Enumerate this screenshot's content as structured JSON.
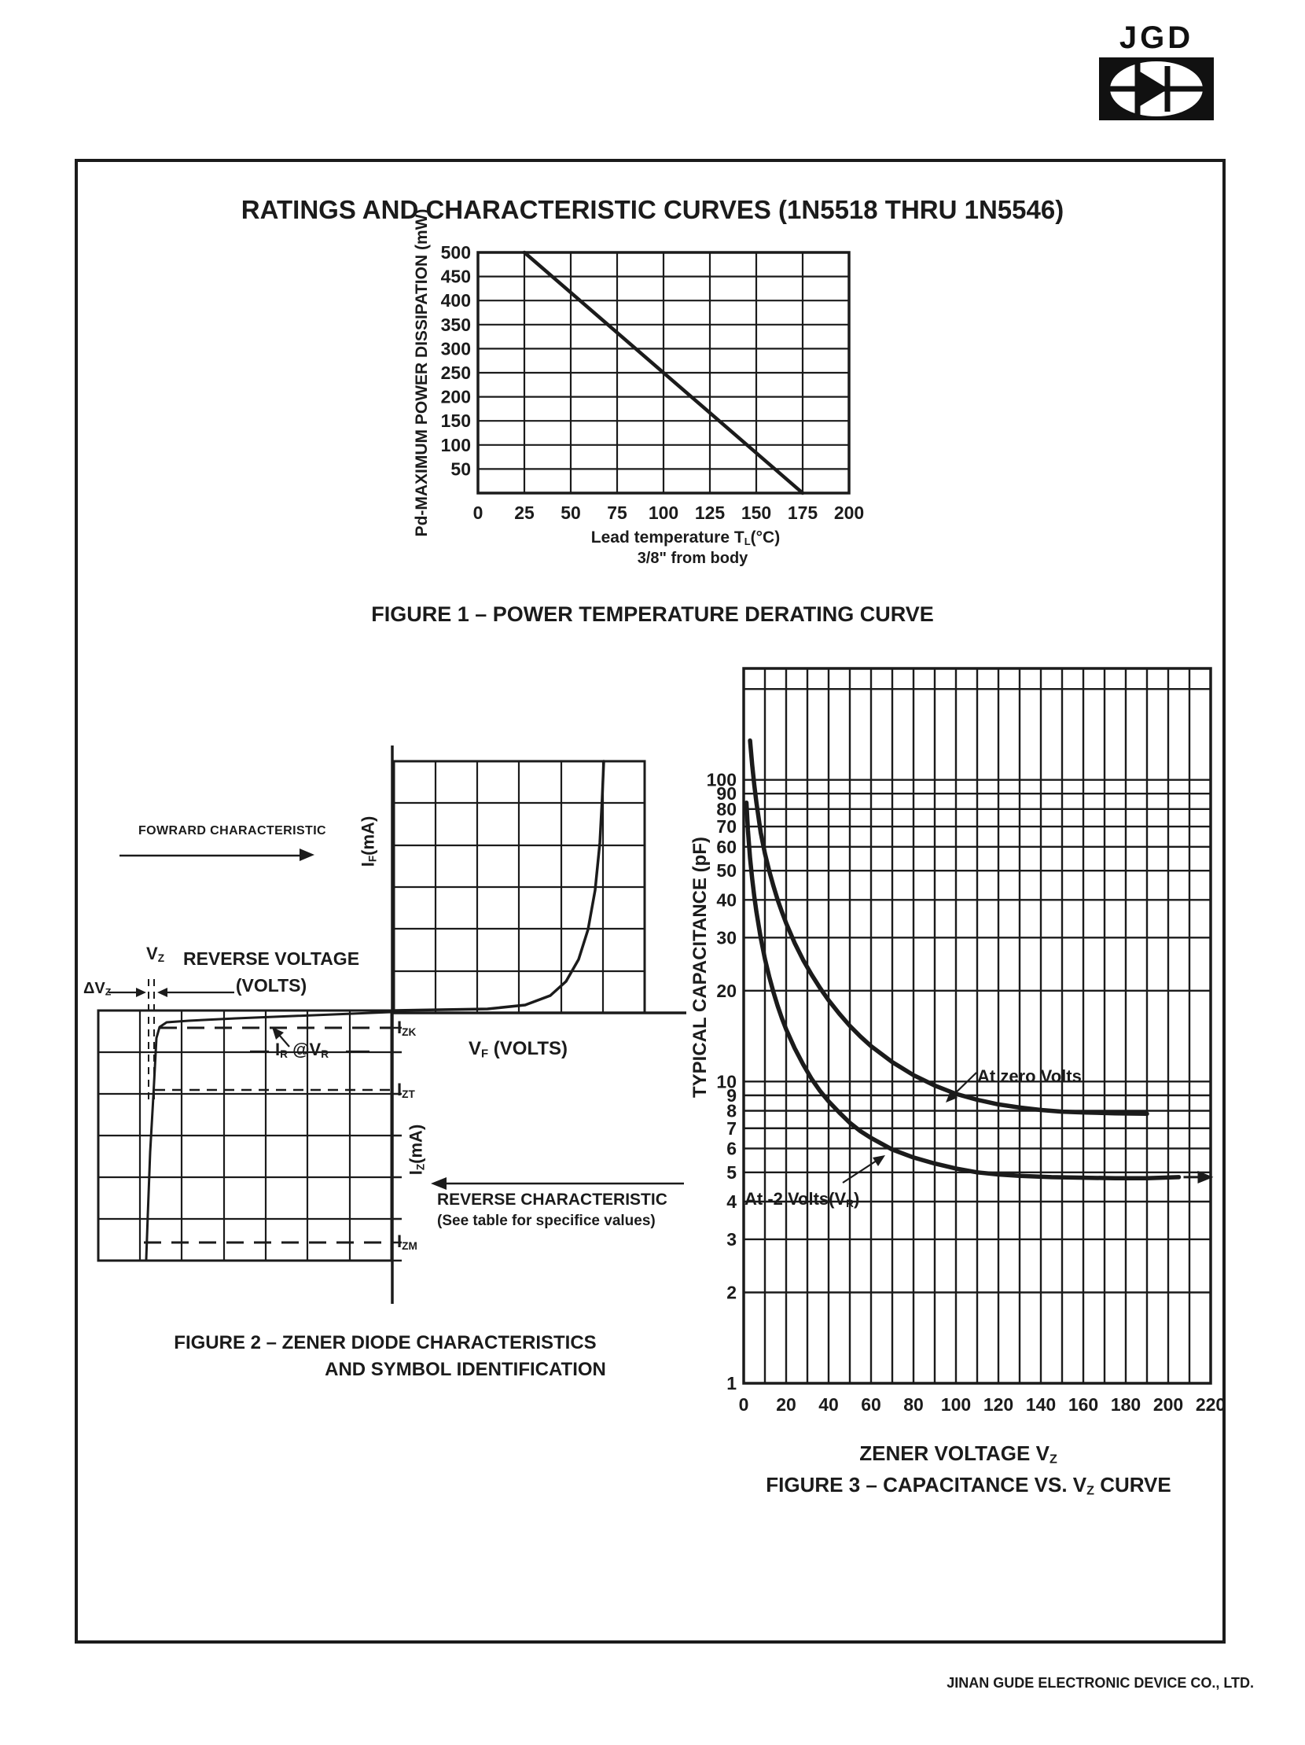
{
  "title": "RATINGS AND CHARACTERISTIC CURVES (1N5518 THRU 1N5546)",
  "logo": {
    "text": "JGD"
  },
  "footer": "JINAN GUDE ELECTRONIC DEVICE CO., LTD.",
  "fig1": {
    "caption": "FIGURE 1 – POWER TEMPERATURE DERATING CURVE",
    "y_axis_label": "Pd-MAXIMUM POWER DISSIPATION (mW)",
    "x_axis_label": {
      "pre": "Lead temperature T",
      "sub": "L",
      "post": "(°C)"
    },
    "x_axis_note": "3/8\" from body"
  },
  "fig2": {
    "caption_line1": "FIGURE 2 – ZENER DIODE CHARACTERISTICS",
    "caption_line2": "AND SYMBOL IDENTIFICATION",
    "forward_label": "FOWRARD CHARACTERISTIC",
    "reverse_label": "REVERSE CHARACTERISTIC",
    "reverse_note": "(See table for specifice values)",
    "reverse_voltage_line1": "REVERSE VOLTAGE",
    "reverse_voltage_line2": "(VOLTS)",
    "if_axis": {
      "pre": "I",
      "sub": "F",
      "post": "(mA)"
    },
    "vf_axis": {
      "pre": "V",
      "sub": "F",
      "post": " (VOLTS)"
    },
    "iz_axis": {
      "pre": "I",
      "sub": "Z",
      "post": "(mA)"
    },
    "vz": {
      "pre": "V",
      "sub": "Z"
    },
    "dvz": {
      "pre": "ΔV",
      "sub": "Z"
    },
    "izk": {
      "pre": "I",
      "sub": "ZK"
    },
    "izt": {
      "pre": "I",
      "sub": "ZT"
    },
    "izm": {
      "pre": "I",
      "sub": "ZM"
    },
    "ir_vr": {
      "pre": "I",
      "sub": "R",
      "mid": " @V",
      "sub2": "R"
    }
  },
  "fig3": {
    "caption_line1": {
      "pre": "ZENER VOLTAGE V",
      "sub": "Z"
    },
    "caption_line2": {
      "pre": "FIGURE 3 – CAPACITANCE VS. V",
      "sub": "Z",
      "post": " CURVE"
    },
    "y_axis_label": "TYPICAL CAPACITANCE (pF)",
    "ann_zero": "At zero Volts",
    "ann_minus2": {
      "pre": "At -2 Volts(V",
      "sub": "R",
      "post": ")"
    }
  },
  "chart_data": {
    "fig1": {
      "type": "line",
      "title": "FIGURE 1 – POWER TEMPERATURE DERATING CURVE",
      "xlabel": "Lead temperature TL(°C) 3/8\" from body",
      "ylabel": "Pd-MAXIMUM POWER DISSIPATION (mW)",
      "xlim": [
        0,
        200
      ],
      "ylim": [
        0,
        500
      ],
      "yscale": "linear",
      "grid": "on",
      "xgrid": [
        0,
        25,
        50,
        75,
        100,
        125,
        150,
        175,
        200
      ],
      "ygrid": [
        0,
        50,
        100,
        150,
        200,
        250,
        300,
        350,
        400,
        450,
        500
      ],
      "xticks": [
        0,
        25,
        50,
        75,
        100,
        125,
        150,
        175,
        200
      ],
      "yticks": [
        50,
        100,
        150,
        200,
        250,
        300,
        350,
        400,
        450,
        500
      ],
      "series": [
        {
          "name": "power-derating",
          "points": [
            [
              25,
              500
            ],
            [
              175,
              0
            ]
          ]
        }
      ]
    },
    "fig3": {
      "type": "line",
      "title": "FIGURE 3 – CAPACITANCE VS. Vz CURVE",
      "xlabel": "ZENER VOLTAGE Vz",
      "ylabel": "TYPICAL CAPACITANCE (pF)",
      "xlim": [
        0,
        220
      ],
      "ylim": [
        1,
        234
      ],
      "yscale": "log",
      "grid": "on",
      "xgrid": [
        0,
        10,
        20,
        30,
        40,
        50,
        60,
        70,
        80,
        90,
        100,
        110,
        120,
        130,
        140,
        150,
        160,
        170,
        180,
        190,
        200,
        210,
        220
      ],
      "ygrid": [
        1,
        2,
        3,
        4,
        5,
        6,
        7,
        8,
        9,
        10,
        20,
        30,
        40,
        50,
        60,
        70,
        80,
        90,
        100,
        200
      ],
      "xticks": [
        0,
        20,
        40,
        60,
        80,
        100,
        120,
        140,
        160,
        180,
        200,
        220
      ],
      "yticks": [
        100,
        90,
        80,
        70,
        60,
        50,
        40,
        30,
        20,
        10,
        9,
        8,
        7,
        6,
        5,
        4,
        3,
        2,
        1
      ],
      "series": [
        {
          "name": "At zero Volts",
          "points": [
            [
              3,
              135
            ],
            [
              4,
              112
            ],
            [
              5,
              96
            ],
            [
              6,
              84
            ],
            [
              8,
              67
            ],
            [
              10,
              57
            ],
            [
              12,
              50
            ],
            [
              14,
              44.5
            ],
            [
              16,
              40
            ],
            [
              18,
              36.5
            ],
            [
              20,
              33.5
            ],
            [
              24,
              28.8
            ],
            [
              28,
              25.3
            ],
            [
              32,
              22.6
            ],
            [
              36,
              20.4
            ],
            [
              40,
              18.6
            ],
            [
              45,
              16.8
            ],
            [
              50,
              15.3
            ],
            [
              55,
              14.1
            ],
            [
              60,
              13.1
            ],
            [
              70,
              11.6
            ],
            [
              80,
              10.5
            ],
            [
              90,
              9.7
            ],
            [
              100,
              9.1
            ],
            [
              110,
              8.7
            ],
            [
              120,
              8.4
            ],
            [
              130,
              8.2
            ],
            [
              140,
              8.05
            ],
            [
              150,
              7.95
            ],
            [
              160,
              7.9
            ],
            [
              175,
              7.85
            ],
            [
              190,
              7.82
            ]
          ]
        },
        {
          "name": "At -2 Volts (VR)",
          "arrow_end": true,
          "points": [
            [
              1.3,
              84
            ],
            [
              2,
              68
            ],
            [
              3,
              55
            ],
            [
              4,
              47
            ],
            [
              5,
              41
            ],
            [
              6,
              36.5
            ],
            [
              8,
              30
            ],
            [
              10,
              25.5
            ],
            [
              12,
              22.3
            ],
            [
              14,
              19.8
            ],
            [
              16,
              17.8
            ],
            [
              18,
              16.2
            ],
            [
              20,
              14.9
            ],
            [
              24,
              12.9
            ],
            [
              28,
              11.4
            ],
            [
              32,
              10.2
            ],
            [
              36,
              9.3
            ],
            [
              40,
              8.6
            ],
            [
              45,
              7.9
            ],
            [
              50,
              7.3
            ],
            [
              55,
              6.85
            ],
            [
              60,
              6.5
            ],
            [
              70,
              5.95
            ],
            [
              80,
              5.6
            ],
            [
              90,
              5.35
            ],
            [
              100,
              5.15
            ],
            [
              110,
              5.0
            ],
            [
              120,
              4.92
            ],
            [
              130,
              4.87
            ],
            [
              145,
              4.82
            ],
            [
              160,
              4.8
            ],
            [
              175,
              4.78
            ],
            [
              190,
              4.78
            ],
            [
              205,
              4.82
            ]
          ]
        }
      ]
    }
  }
}
